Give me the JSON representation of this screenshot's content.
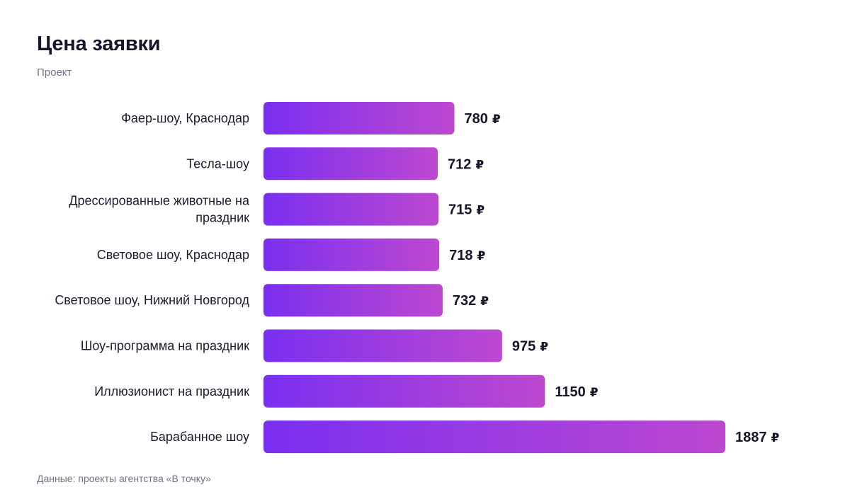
{
  "header": {
    "title": "Цена заявки",
    "subtitle": "Проект"
  },
  "footer": {
    "source": "Данные: проекты агентства «В точку»"
  },
  "colors": {
    "bar_start": "#7a2ff0",
    "bar_end": "#bd48d0"
  },
  "chart_data": {
    "type": "bar",
    "orientation": "horizontal",
    "title": "Цена заявки",
    "subtitle": "Проект",
    "xlabel": "",
    "ylabel": "Проект",
    "unit": "₽",
    "xlim": [
      0,
      2000
    ],
    "grid": false,
    "categories": [
      [
        "Фаер-шоу, Краснодар"
      ],
      [
        "Тесла-шоу"
      ],
      [
        "Дрессированные животные на",
        "праздник"
      ],
      [
        "Световое шоу, Краснодар"
      ],
      [
        "Световое шоу, Нижний Новгород"
      ],
      [
        "Шоу-программа на праздник"
      ],
      [
        "Иллюзионист на праздник"
      ],
      [
        "Барабанное шоу"
      ]
    ],
    "values": [
      780,
      712,
      715,
      718,
      732,
      975,
      1150,
      1887
    ]
  }
}
